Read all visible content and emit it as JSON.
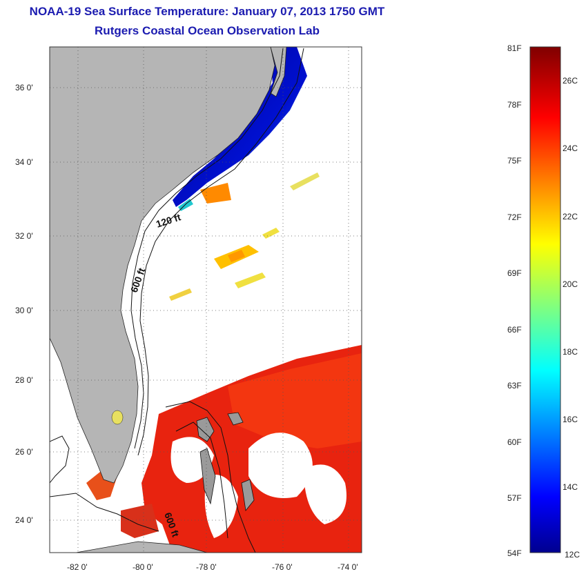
{
  "title": "NOAA-19 Sea Surface Temperature:  January 07, 2013 1750 GMT",
  "subtitle": "Rutgers Coastal Ocean Observation Lab",
  "lat_labels": [
    "36 0'",
    "34 0'",
    "32 0'",
    "30 0'",
    "28 0'",
    "26 0'",
    "24 0'"
  ],
  "lon_labels": [
    "-82 0'",
    "-80 0'",
    "-78 0'",
    "-76 0'",
    "-74 0'"
  ],
  "contour_labels": [
    "120 ft",
    "600 ft",
    "600 ft"
  ],
  "colorbar": {
    "fahrenheit": [
      "81F",
      "78F",
      "75F",
      "72F",
      "69F",
      "66F",
      "63F",
      "60F",
      "57F",
      "54F"
    ],
    "celsius": [
      "26C",
      "24C",
      "22C",
      "20C",
      "18C",
      "16C",
      "14C",
      "12C"
    ]
  },
  "colors": {
    "title": "#1b1bb0",
    "land": "#b5b5b5",
    "ocean": "#ffffff",
    "gulf_stream": "#e8230f",
    "cold_shelf": "#0a1aa8"
  }
}
